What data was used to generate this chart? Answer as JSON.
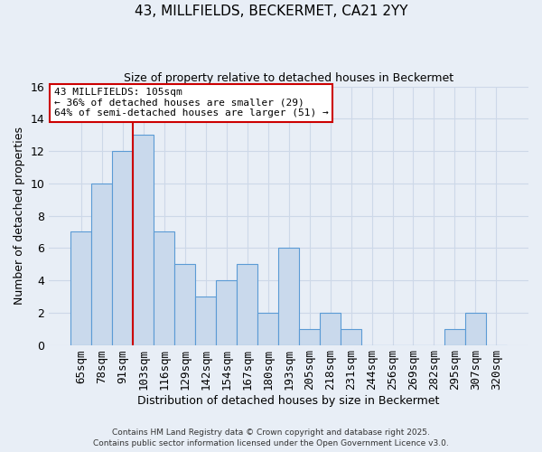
{
  "title": "43, MILLFIELDS, BECKERMET, CA21 2YY",
  "subtitle": "Size of property relative to detached houses in Beckermet",
  "xlabel": "Distribution of detached houses by size in Beckermet",
  "ylabel": "Number of detached properties",
  "bin_labels": [
    "65sqm",
    "78sqm",
    "91sqm",
    "103sqm",
    "116sqm",
    "129sqm",
    "142sqm",
    "154sqm",
    "167sqm",
    "180sqm",
    "193sqm",
    "205sqm",
    "218sqm",
    "231sqm",
    "244sqm",
    "256sqm",
    "269sqm",
    "282sqm",
    "295sqm",
    "307sqm",
    "320sqm"
  ],
  "bar_values": [
    7,
    10,
    12,
    13,
    7,
    5,
    3,
    4,
    5,
    2,
    6,
    1,
    2,
    1,
    0,
    0,
    0,
    0,
    1,
    2,
    0
  ],
  "bar_color": "#c9d9ec",
  "bar_edge_color": "#5b9bd5",
  "vline_index": 3,
  "vline_color": "#cc0000",
  "annotation_text": "43 MILLFIELDS: 105sqm\n← 36% of detached houses are smaller (29)\n64% of semi-detached houses are larger (51) →",
  "annotation_box_color": "#ffffff",
  "annotation_box_edge_color": "#cc0000",
  "ylim": [
    0,
    16
  ],
  "yticks": [
    0,
    2,
    4,
    6,
    8,
    10,
    12,
    14,
    16
  ],
  "grid_color": "#cdd8e8",
  "background_color": "#e8eef6",
  "footer_line1": "Contains HM Land Registry data © Crown copyright and database right 2025.",
  "footer_line2": "Contains public sector information licensed under the Open Government Licence v3.0."
}
